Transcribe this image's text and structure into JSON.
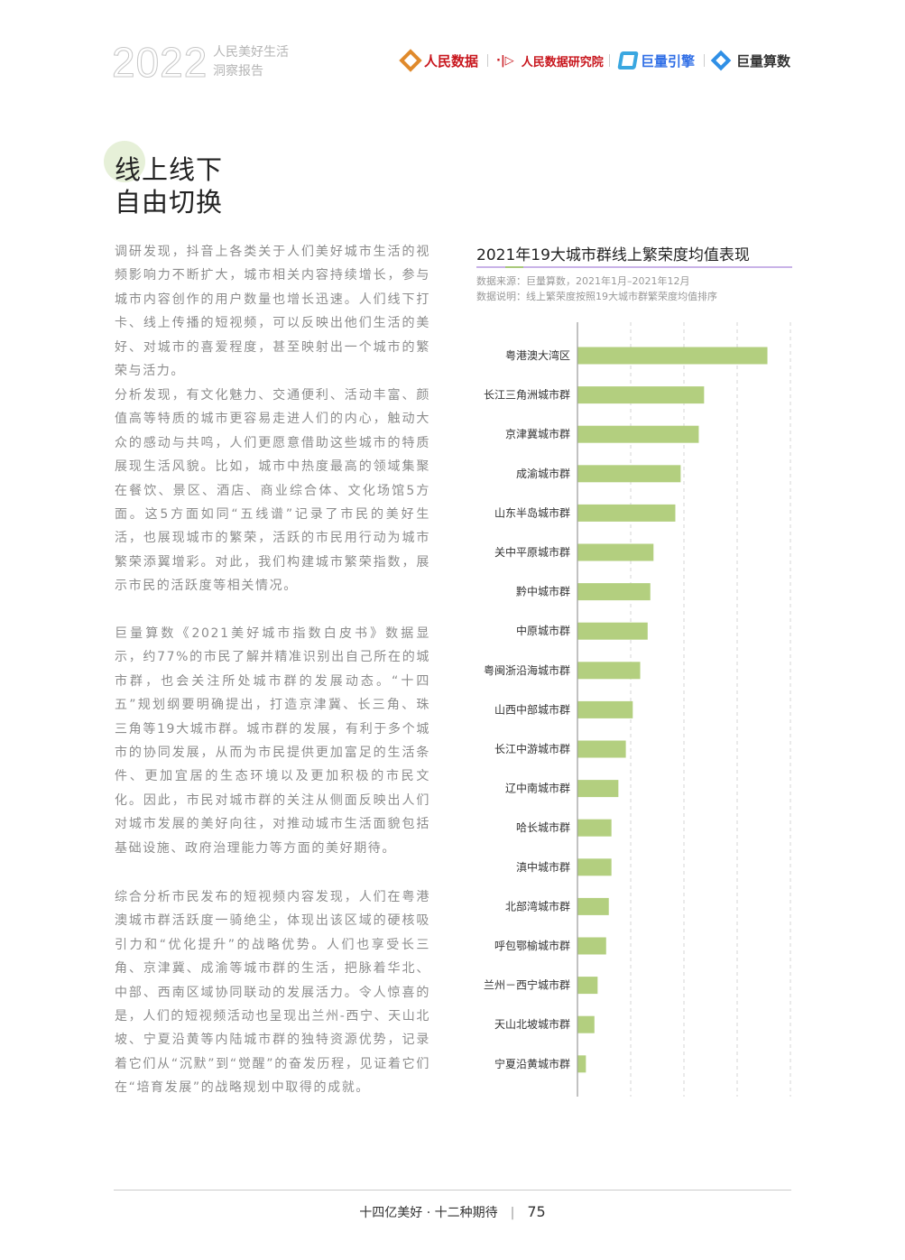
{
  "header": {
    "year": "2022",
    "subtitle_line1": "人民美好生活",
    "subtitle_line2": "洞察报告",
    "logos": [
      {
        "name": "人民数据",
        "color": "#c8161d"
      },
      {
        "name": "人民数据研究院",
        "color": "#c8161d"
      },
      {
        "name": "巨量引擎",
        "color": "#2f6ee6"
      },
      {
        "name": "巨量算数",
        "color": "#333333"
      }
    ]
  },
  "section": {
    "title_line1": "线上线下",
    "title_line2": "自由切换"
  },
  "paragraphs": [
    "调研发现，抖音上各类关于人们美好城市生活的视频影响力不断扩大，城市相关内容持续增长，参与城市内容创作的用户数量也增长迅速。人们线下打卡、线上传播的短视频，可以反映出他们生活的美好、对城市的喜爱程度，甚至映射出一个城市的繁荣与活力。",
    "分析发现，有文化魅力、交通便利、活动丰富、颜值高等特质的城市更容易走进人们的内心，触动大众的感动与共鸣，人们更愿意借助这些城市的特质展现生活风貌。比如，城市中热度最高的领域集聚在餐饮、景区、酒店、商业综合体、文化场馆5方面。这5方面如同“五线谱”记录了市民的美好生活，也展现城市的繁荣，活跃的市民用行动为城市繁荣添翼增彩。对此，我们构建城市繁荣指数，展示市民的活跃度等相关情况。",
    "巨量算数《2021美好城市指数白皮书》数据显示，约77%的市民了解并精准识别出自己所在的城市群，也会关注所处城市群的发展动态。“十四五”规划纲要明确提出，打造京津冀、长三角、珠三角等19大城市群。城市群的发展，有利于多个城市的协同发展，从而为市民提供更加富足的生活条件、更加宜居的生态环境以及更加积极的市民文化。因此，市民对城市群的关注从侧面反映出人们对城市发展的美好向往，对推动城市生活面貌包括基础设施、政府治理能力等方面的美好期待。",
    "综合分析市民发布的短视频内容发现，人们在粤港澳城市群活跃度一骑绝尘，体现出该区域的硬核吸引力和“优化提升”的战略优势。人们也享受长三角、京津冀、成渝等城市群的生活，把脉着华北、中部、西南区域协同联动的发展活力。令人惊喜的是，人们的短视频活动也呈现出兰州-西宁、天山北坡、宁夏沿黄等内陆城市群的独特资源优势，记录着它们从“沉默”到“觉醒”的奋发历程，见证着它们在“培育发展”的战略规划中取得的成就。"
  ],
  "chart_data": {
    "type": "bar",
    "orientation": "horizontal",
    "title": "2021年19大城市群线上繁荣度均值表现",
    "source": "数据来源：巨量算数，2021年1月–2021年12月",
    "note": "数据说明：线上繁荣度按照19大城市群繁荣度均值排序",
    "categories": [
      "粤港澳大湾区",
      "长江三角洲城市群",
      "京津冀城市群",
      "成渝城市群",
      "山东半岛城市群",
      "关中平原城市群",
      "黔中城市群",
      "中原城市群",
      "粤闽浙沿海城市群",
      "山西中部城市群",
      "长江中游城市群",
      "辽中南城市群",
      "哈长城市群",
      "滇中城市群",
      "北部湾城市群",
      "呼包鄂榆城市群",
      "兰州－西宁城市群",
      "天山北坡城市群",
      "宁夏沿黄城市群"
    ],
    "values": [
      3.56,
      2.37,
      2.27,
      1.93,
      1.83,
      1.42,
      1.36,
      1.31,
      1.17,
      1.03,
      0.9,
      0.76,
      0.63,
      0.63,
      0.58,
      0.53,
      0.37,
      0.31,
      0.15
    ],
    "xlim": [
      0,
      4
    ],
    "grid": "vertical dashed",
    "bar_color": "#b3cf7f",
    "axis_ticks_shown": false
  },
  "footer": {
    "text": "十四亿美好 · 十二种期待",
    "separator": "|",
    "page": "75"
  }
}
